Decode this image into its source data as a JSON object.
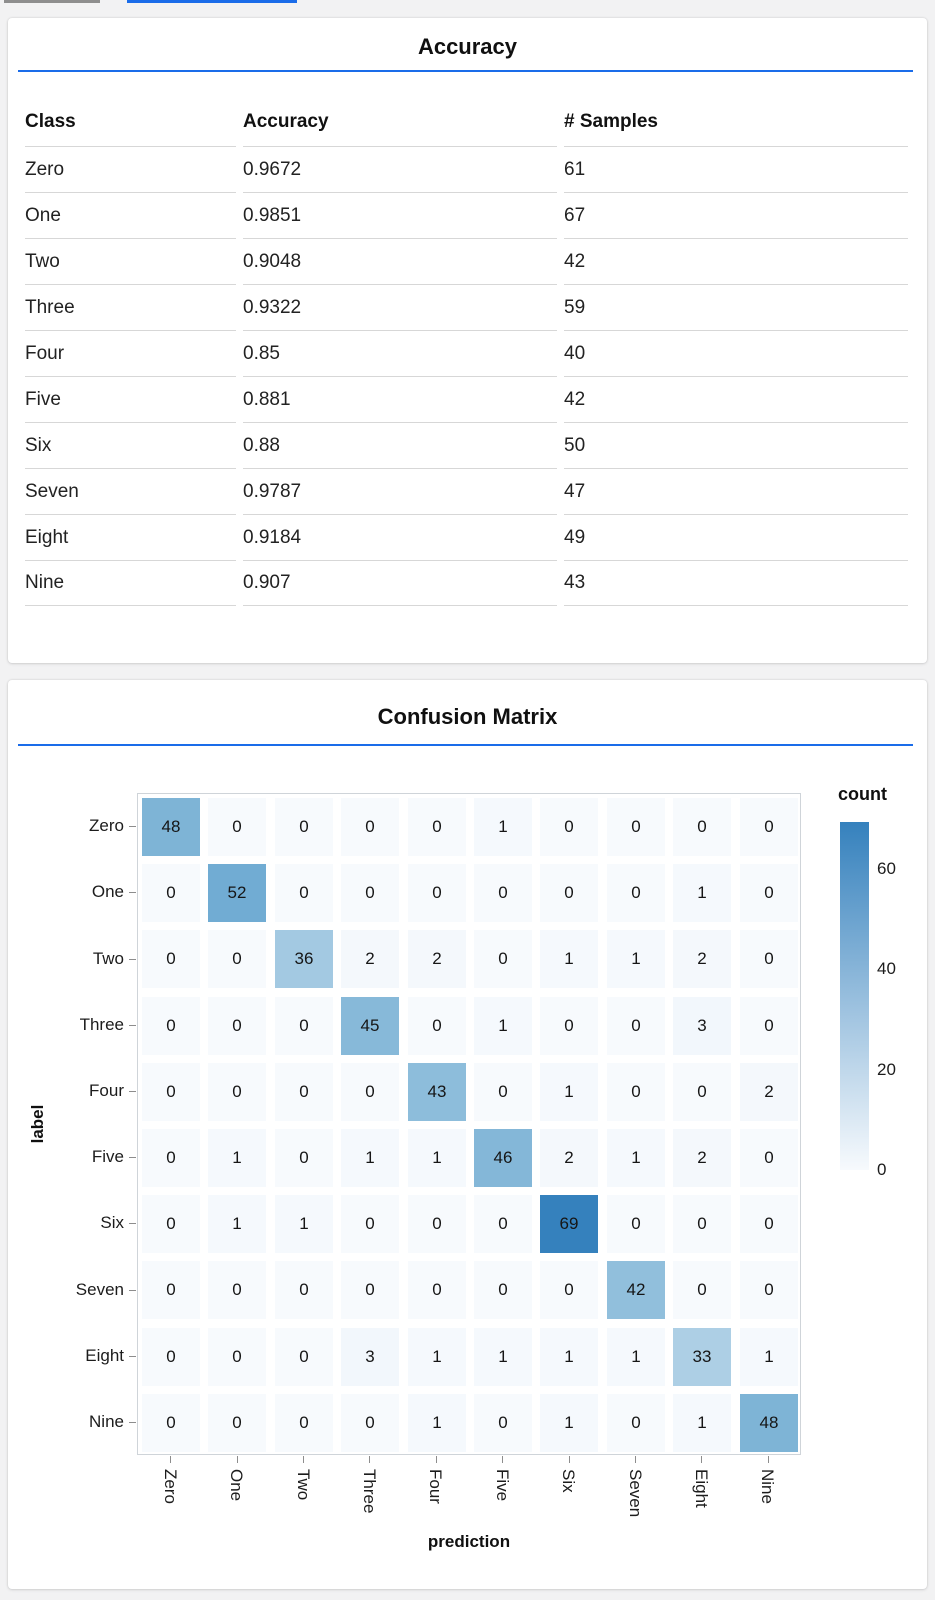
{
  "top_bars": {
    "gray_color": "#8e8e8e",
    "blue_color": "#1a6ce9"
  },
  "colors": {
    "accent_rule": "#1a6ce9",
    "heat_low": "#f7fafd",
    "heat_high": "#3581bd",
    "page_background": "#f2f2f3",
    "card_background": "#ffffff"
  },
  "accuracy": {
    "title": "Accuracy",
    "table": {
      "columns": [
        "Class",
        "Accuracy",
        "# Samples"
      ],
      "rows": [
        [
          "Zero",
          "0.9672",
          "61"
        ],
        [
          "One",
          "0.9851",
          "67"
        ],
        [
          "Two",
          "0.9048",
          "42"
        ],
        [
          "Three",
          "0.9322",
          "59"
        ],
        [
          "Four",
          "0.85",
          "40"
        ],
        [
          "Five",
          "0.881",
          "42"
        ],
        [
          "Six",
          "0.88",
          "50"
        ],
        [
          "Seven",
          "0.9787",
          "47"
        ],
        [
          "Eight",
          "0.9184",
          "49"
        ],
        [
          "Nine",
          "0.907",
          "43"
        ]
      ]
    }
  },
  "confusion": {
    "title": "Confusion Matrix"
  },
  "chart_data": [
    {
      "type": "table",
      "title": "Accuracy",
      "columns": [
        "Class",
        "Accuracy",
        "# Samples"
      ],
      "rows": [
        [
          "Zero",
          0.9672,
          61
        ],
        [
          "One",
          0.9851,
          67
        ],
        [
          "Two",
          0.9048,
          42
        ],
        [
          "Three",
          0.9322,
          59
        ],
        [
          "Four",
          0.85,
          40
        ],
        [
          "Five",
          0.881,
          42
        ],
        [
          "Six",
          0.88,
          50
        ],
        [
          "Seven",
          0.9787,
          47
        ],
        [
          "Eight",
          0.9184,
          49
        ],
        [
          "Nine",
          0.907,
          43
        ]
      ]
    },
    {
      "type": "heatmap",
      "title": "Confusion Matrix",
      "xlabel": "prediction",
      "ylabel": "label",
      "x_categories": [
        "Zero",
        "One",
        "Two",
        "Three",
        "Four",
        "Five",
        "Six",
        "Seven",
        "Eight",
        "Nine"
      ],
      "y_categories": [
        "Zero",
        "One",
        "Two",
        "Three",
        "Four",
        "Five",
        "Six",
        "Seven",
        "Eight",
        "Nine"
      ],
      "values": [
        [
          48,
          0,
          0,
          0,
          0,
          1,
          0,
          0,
          0,
          0
        ],
        [
          0,
          52,
          0,
          0,
          0,
          0,
          0,
          0,
          1,
          0
        ],
        [
          0,
          0,
          36,
          2,
          2,
          0,
          1,
          1,
          2,
          0
        ],
        [
          0,
          0,
          0,
          45,
          0,
          1,
          0,
          0,
          3,
          0
        ],
        [
          0,
          0,
          0,
          0,
          43,
          0,
          1,
          0,
          0,
          2
        ],
        [
          0,
          1,
          0,
          1,
          1,
          46,
          2,
          1,
          2,
          0
        ],
        [
          0,
          1,
          1,
          0,
          0,
          0,
          69,
          0,
          0,
          0
        ],
        [
          0,
          0,
          0,
          0,
          0,
          0,
          0,
          42,
          0,
          0
        ],
        [
          0,
          0,
          0,
          3,
          1,
          1,
          1,
          1,
          33,
          1
        ],
        [
          0,
          0,
          0,
          0,
          1,
          0,
          1,
          0,
          1,
          48
        ]
      ],
      "value_domain": [
        0,
        69
      ],
      "legend": {
        "title": "count",
        "ticks": [
          60,
          40,
          20,
          0
        ],
        "position": "right"
      },
      "grid": false,
      "color_scale": {
        "low": "#f7fafd",
        "high": "#3581bd"
      }
    }
  ]
}
